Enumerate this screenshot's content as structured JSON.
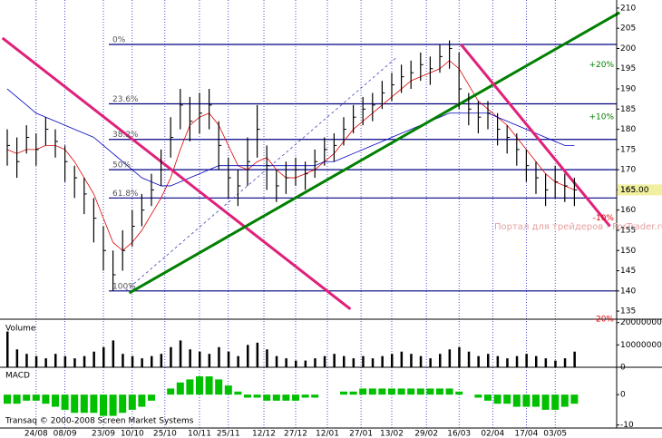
{
  "chart_data": {
    "type": "ohlc",
    "high": [
      180,
      178,
      181,
      179,
      183,
      180,
      176,
      171,
      168,
      163,
      156,
      150,
      155,
      160,
      164,
      169,
      175,
      183,
      190,
      188,
      189,
      190,
      182,
      173,
      170,
      178,
      186,
      176,
      170,
      172,
      173,
      172,
      175,
      178,
      179,
      183,
      186,
      188,
      189,
      192,
      194,
      196,
      197,
      199,
      198,
      201,
      202,
      199,
      189,
      187,
      187,
      184,
      181,
      179,
      175,
      172,
      169,
      171,
      169,
      168
    ],
    "low": [
      171,
      168,
      174,
      171,
      176,
      173,
      167,
      163,
      159,
      152,
      145,
      140,
      145,
      151,
      156,
      161,
      166,
      173,
      180,
      177,
      179,
      180,
      170,
      163,
      161,
      166,
      173,
      165,
      162,
      164,
      166,
      165,
      168,
      171,
      172,
      176,
      179,
      181,
      182,
      185,
      187,
      189,
      190,
      192,
      191,
      194,
      195,
      185,
      181,
      179,
      180,
      176,
      174,
      171,
      167,
      164,
      161,
      163,
      162,
      161
    ],
    "close": [
      176,
      172,
      178,
      175,
      180,
      177,
      172,
      168,
      164,
      158,
      150,
      144,
      150,
      156,
      160,
      165,
      170,
      178,
      186,
      182,
      184,
      186,
      176,
      168,
      166,
      172,
      180,
      171,
      166,
      168,
      170,
      169,
      172,
      175,
      176,
      180,
      183,
      185,
      186,
      189,
      191,
      193,
      194,
      196,
      195,
      198,
      200,
      190,
      185,
      183,
      184,
      180,
      178,
      175,
      171,
      168,
      165,
      167,
      166,
      165
    ],
    "bar_color": "#000000",
    "averages": [
      {
        "color": "#e00000",
        "values": [
          175,
          174,
          175,
          175,
          176,
          176,
          175,
          172,
          168,
          164,
          158,
          152,
          150,
          152,
          155,
          159,
          163,
          168,
          175,
          181,
          183,
          184,
          181,
          176,
          171,
          170,
          172,
          173,
          170,
          168,
          168,
          169,
          170,
          172,
          174,
          177,
          180,
          182,
          184,
          186,
          188,
          190,
          192,
          193,
          194,
          195,
          197,
          195,
          191,
          187,
          185,
          183,
          181,
          178,
          175,
          172,
          169,
          167,
          166,
          165
        ]
      },
      {
        "color": "#0000c0",
        "values": [
          190,
          188,
          186,
          184,
          183,
          182,
          181,
          180,
          179,
          178,
          176,
          174,
          172,
          170,
          168,
          167,
          166,
          166,
          167,
          168,
          169,
          170,
          171,
          171,
          171,
          171,
          171,
          171,
          171,
          171,
          171,
          171,
          171,
          172,
          172,
          173,
          174,
          175,
          176,
          177,
          178,
          179,
          180,
          181,
          182,
          183,
          184,
          184,
          184,
          184,
          184,
          183,
          182,
          181,
          180,
          179,
          178,
          177,
          176,
          176
        ]
      }
    ],
    "ylim": [
      133,
      212
    ],
    "yticks": [
      135,
      140,
      145,
      150,
      155,
      160,
      165,
      170,
      175,
      180,
      185,
      190,
      195,
      200,
      205,
      210
    ],
    "xticks": [
      {
        "value": 3,
        "label": "24/08"
      },
      {
        "value": 6,
        "label": "08/09"
      },
      {
        "value": 10,
        "label": "23/09"
      },
      {
        "value": 13,
        "label": "10/10"
      },
      {
        "value": 16.4,
        "label": "25/10"
      },
      {
        "value": 20,
        "label": "10/11"
      },
      {
        "value": 23,
        "label": "25/11"
      },
      {
        "value": 26.7,
        "label": "12/12"
      },
      {
        "value": 30,
        "label": "27/12"
      },
      {
        "value": 33.3,
        "label": "12/01"
      },
      {
        "value": 36.8,
        "label": "27/01"
      },
      {
        "value": 40,
        "label": "13/02"
      },
      {
        "value": 43.6,
        "label": "29/02"
      },
      {
        "value": 47,
        "label": "16/03"
      },
      {
        "value": 50.5,
        "label": "02/04"
      },
      {
        "value": 54,
        "label": "17/04"
      },
      {
        "value": 57,
        "label": "03/05"
      }
    ],
    "fib_levels": [
      {
        "label": "0%",
        "price": 201
      },
      {
        "label": "23.6%",
        "price": 186.3
      },
      {
        "label": "38.2%",
        "price": 177.5
      },
      {
        "label": "50%",
        "price": 170
      },
      {
        "label": "61.8%",
        "price": 163
      },
      {
        "label": "100%",
        "price": 140
      }
    ],
    "fib_color": "#000080",
    "trend_lines": [
      {
        "color": "#e0207a",
        "from": [
          -0.5,
          202.6
        ],
        "to": [
          35.7,
          135.5
        ]
      },
      {
        "color": "#008000",
        "from": [
          12.7,
          139.5
        ],
        "to": [
          63.7,
          208.9
        ]
      },
      {
        "color": "#e0207a",
        "from": [
          47.2,
          201
        ],
        "to": [
          62.7,
          156
        ]
      },
      {
        "color": "#4040c0",
        "from": [
          12.3,
          140
        ],
        "to": [
          40.6,
          198
        ],
        "dashed": true
      }
    ],
    "percent_marks": [
      {
        "label": "+20%",
        "price": 196,
        "color": "#008000"
      },
      {
        "label": "+10%",
        "price": 183,
        "color": "#008000"
      },
      {
        "label": "-10%",
        "price": 158,
        "color": "#e00000"
      },
      {
        "label": "-20%",
        "price": 133,
        "color": "#e00000"
      }
    ],
    "last_price": {
      "value": 165,
      "label": "165.00"
    },
    "watermark": "Портал для трейдеров - ForTrader.ru",
    "volume": {
      "title": "Volume",
      "color": "#000000",
      "ylim": [
        0,
        21500000
      ],
      "yticks": [
        {
          "value": 0,
          "label": "0"
        },
        {
          "value": 10000000,
          "label": "10000000"
        },
        {
          "value": 20000000,
          "label": "20000000"
        }
      ],
      "values": [
        16000000,
        8000000,
        6000000,
        5000000,
        4000000,
        6000000,
        5000000,
        4000000,
        5000000,
        7000000,
        9000000,
        12000000,
        6000000,
        5000000,
        4000000,
        5000000,
        6000000,
        9000000,
        12000000,
        8000000,
        7000000,
        6000000,
        9000000,
        7000000,
        5000000,
        10000000,
        11000000,
        8000000,
        5000000,
        4000000,
        3000000,
        3000000,
        4000000,
        5000000,
        6000000,
        5000000,
        4000000,
        5000000,
        4000000,
        5000000,
        6000000,
        7000000,
        6000000,
        5000000,
        4000000,
        6000000,
        8000000,
        9000000,
        7000000,
        5000000,
        6000000,
        5000000,
        4000000,
        5000000,
        6000000,
        5000000,
        4000000,
        3000000,
        4000000,
        7000000
      ]
    },
    "macd": {
      "title": "MACD",
      "color": "#00c000",
      "ylim": [
        -11,
        9
      ],
      "yticks": [
        -10,
        0
      ],
      "values": [
        -3,
        -3,
        -2,
        -2,
        -3,
        -4,
        -5,
        -6,
        -6,
        -6,
        -7,
        -7,
        -6,
        -5,
        -4,
        -2,
        0,
        2,
        4,
        5,
        6,
        6,
        5,
        3,
        1,
        -1,
        -1,
        -2,
        -2,
        -2,
        -2,
        -1,
        -1,
        0,
        0,
        1,
        1,
        2,
        2,
        2,
        2,
        2,
        2,
        2,
        2,
        2,
        2,
        1,
        0,
        -1,
        -2,
        -3,
        -3,
        -4,
        -4,
        -4,
        -5,
        -5,
        -4,
        -3
      ]
    },
    "copyright": "Transaq © 2000-2008 Screen Market Systems"
  }
}
